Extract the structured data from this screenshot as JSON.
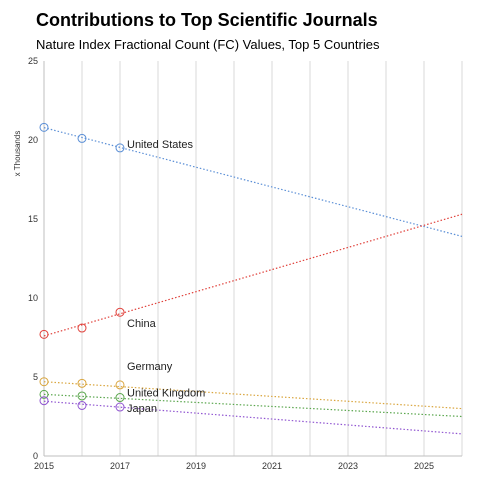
{
  "chart_data": {
    "type": "scatter",
    "title": "Contributions to Top Scientific Journals",
    "subtitle": "Nature Index Fractional Count (FC) Values, Top 5 Countries",
    "ylabel": "x Thousands",
    "xlabel": "",
    "xlim": [
      2015,
      2026
    ],
    "ylim": [
      0,
      25
    ],
    "x_ticks": [
      "2015",
      "2017",
      "2019",
      "2021",
      "2023",
      "2025"
    ],
    "y_ticks": [
      "0",
      "5",
      "10",
      "15",
      "20",
      "25"
    ],
    "grid": "vertical",
    "trendlines": "linear, dotted, extended to 2026",
    "series": [
      {
        "name": "United States",
        "color": "#5b8fd6",
        "x": [
          2015,
          2016,
          2017
        ],
        "values": [
          20.8,
          20.1,
          19.5
        ],
        "trend_end": 13.9
      },
      {
        "name": "China",
        "color": "#e0403a",
        "x": [
          2015,
          2016,
          2017
        ],
        "values": [
          7.7,
          8.1,
          9.1
        ],
        "trend_end": 15.3
      },
      {
        "name": "Germany",
        "color": "#d9a53d",
        "x": [
          2015,
          2016,
          2017
        ],
        "values": [
          4.7,
          4.6,
          4.5
        ],
        "trend_end": 3.0
      },
      {
        "name": "United Kingdom",
        "color": "#5aa64d",
        "x": [
          2015,
          2016,
          2017
        ],
        "values": [
          3.9,
          3.8,
          3.7
        ],
        "trend_end": 2.5
      },
      {
        "name": "Japan",
        "color": "#9055d1",
        "x": [
          2015,
          2016,
          2017
        ],
        "values": [
          3.5,
          3.2,
          3.1
        ],
        "trend_end": 1.4
      }
    ]
  }
}
